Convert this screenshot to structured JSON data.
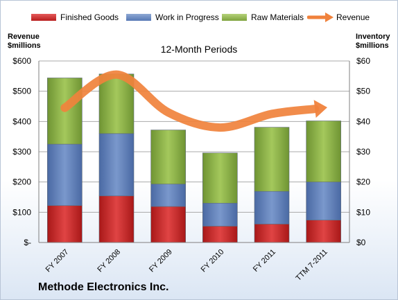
{
  "chart_data": {
    "type": "bar",
    "stacked": true,
    "subtitle": "12-Month Periods",
    "categories": [
      "FY 2007",
      "FY 2008",
      "FY 2009",
      "FY 2010",
      "FY 2011",
      "TTM 7-2011"
    ],
    "left_axis": {
      "label_line1": "Revenue",
      "label_line2": "$millions",
      "range": [
        0,
        600
      ],
      "ticks": [
        0,
        100,
        200,
        300,
        400,
        500,
        600
      ],
      "tick_labels": [
        "$-",
        "$100",
        "$200",
        "$300",
        "$400",
        "$500",
        "$600"
      ]
    },
    "right_axis": {
      "label_line1": "Inventory",
      "label_line2": "$millions",
      "range": [
        0,
        60
      ],
      "ticks": [
        0,
        10,
        20,
        30,
        40,
        50,
        60
      ],
      "tick_labels": [
        "$0",
        "$10",
        "$20",
        "$30",
        "$40",
        "$50",
        "$60"
      ]
    },
    "series": [
      {
        "name": "Finished Goods",
        "axis": "right",
        "color": "#c62828",
        "values": [
          12.2,
          15.4,
          11.9,
          5.4,
          6.1,
          7.4
        ]
      },
      {
        "name": "Work in Progress",
        "axis": "right",
        "color": "#5a7bb5",
        "values": [
          20.3,
          20.6,
          7.4,
          7.6,
          10.8,
          12.6
        ]
      },
      {
        "name": "Raw Materials",
        "axis": "right",
        "color": "#8db446",
        "values": [
          21.9,
          19.7,
          17.9,
          16.6,
          21.2,
          20.2
        ]
      },
      {
        "name": "Revenue",
        "axis": "left",
        "type": "line",
        "color": "#f0823c",
        "values": [
          445,
          555,
          430,
          380,
          425,
          445
        ]
      }
    ],
    "grid": true,
    "legend": "top"
  },
  "company": "Methode Electronics Inc."
}
